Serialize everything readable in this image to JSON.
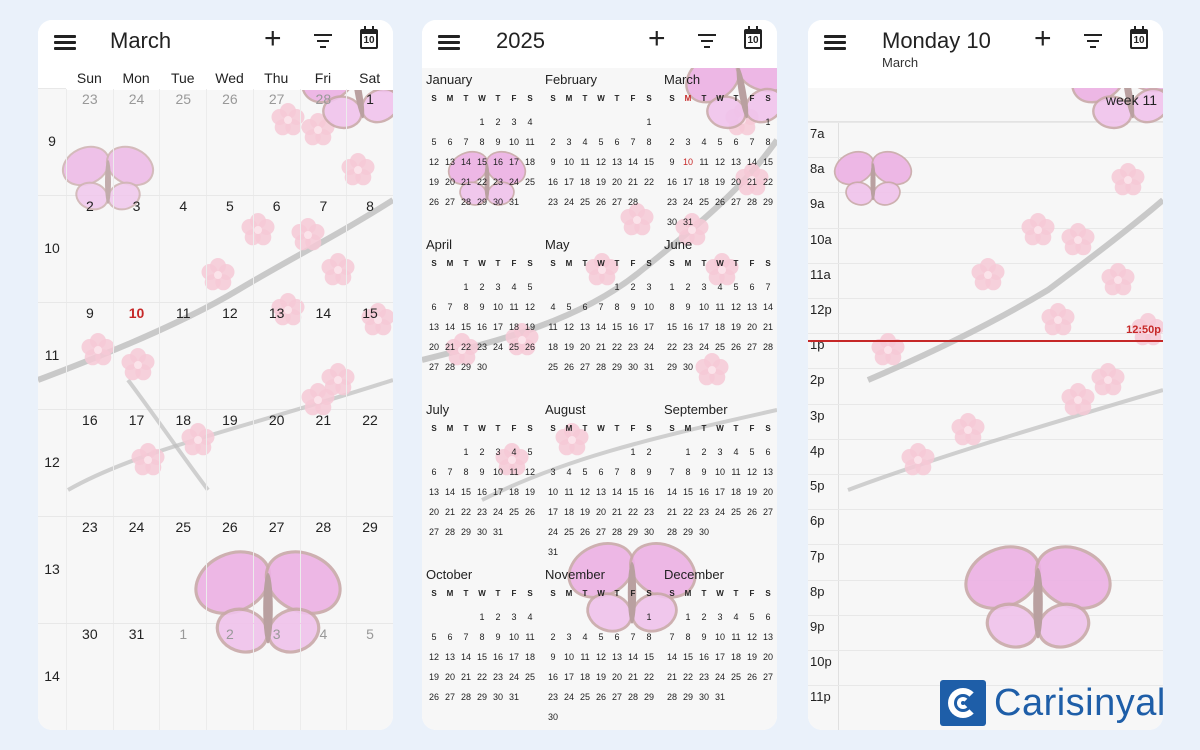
{
  "month_screen": {
    "title": "March",
    "today_icon_day": "10",
    "dow": [
      "Sun",
      "Mon",
      "Tue",
      "Wed",
      "Thu",
      "Fri",
      "Sat"
    ],
    "weeks": [
      {
        "num": "9",
        "days": [
          "23",
          "24",
          "25",
          "26",
          "27",
          "28",
          "1"
        ],
        "other": [
          0,
          1,
          2,
          3,
          4,
          5
        ]
      },
      {
        "num": "10",
        "days": [
          "2",
          "3",
          "4",
          "5",
          "6",
          "7",
          "8"
        ],
        "other": []
      },
      {
        "num": "11",
        "days": [
          "9",
          "10",
          "11",
          "12",
          "13",
          "14",
          "15"
        ],
        "other": [],
        "today": 1
      },
      {
        "num": "12",
        "days": [
          "16",
          "17",
          "18",
          "19",
          "20",
          "21",
          "22"
        ],
        "other": []
      },
      {
        "num": "13",
        "days": [
          "23",
          "24",
          "25",
          "26",
          "27",
          "28",
          "29"
        ],
        "other": []
      },
      {
        "num": "14",
        "days": [
          "30",
          "31",
          "1",
          "2",
          "3",
          "4",
          "5"
        ],
        "other": [
          2,
          3,
          4,
          5,
          6
        ]
      }
    ]
  },
  "year_screen": {
    "title": "2025",
    "today_icon_day": "10",
    "dow": [
      "S",
      "M",
      "T",
      "W",
      "T",
      "F",
      "S"
    ],
    "months": [
      {
        "name": "January",
        "offset": 3,
        "days": 31
      },
      {
        "name": "February",
        "offset": 6,
        "days": 28
      },
      {
        "name": "March",
        "offset": 6,
        "days": 31,
        "today": 10
      },
      {
        "name": "April",
        "offset": 2,
        "days": 30
      },
      {
        "name": "May",
        "offset": 4,
        "days": 31
      },
      {
        "name": "June",
        "offset": 0,
        "days": 30
      },
      {
        "name": "July",
        "offset": 2,
        "days": 31
      },
      {
        "name": "August",
        "offset": 5,
        "days": 31
      },
      {
        "name": "September",
        "offset": 1,
        "days": 30
      },
      {
        "name": "October",
        "offset": 3,
        "days": 31
      },
      {
        "name": "November",
        "offset": 6,
        "days": 30
      },
      {
        "name": "December",
        "offset": 1,
        "days": 31
      }
    ]
  },
  "day_screen": {
    "title": "Monday 10",
    "subtitle": "March",
    "today_icon_day": "10",
    "week_label": "week 11",
    "hours": [
      "7a",
      "8a",
      "9a",
      "10a",
      "11a",
      "12p",
      "1p",
      "2p",
      "3p",
      "4p",
      "5p",
      "6p",
      "7p",
      "8p",
      "9p",
      "10p",
      "11p"
    ],
    "now_label": "12:50p",
    "now_fraction_of_day": 0.5347
  },
  "watermark": {
    "text": "Carisinyal"
  },
  "colors": {
    "accent": "#c62828",
    "brand": "#1e5ea8",
    "blossom": "#f3c6d3",
    "butterfly": "#e9a9e0"
  }
}
